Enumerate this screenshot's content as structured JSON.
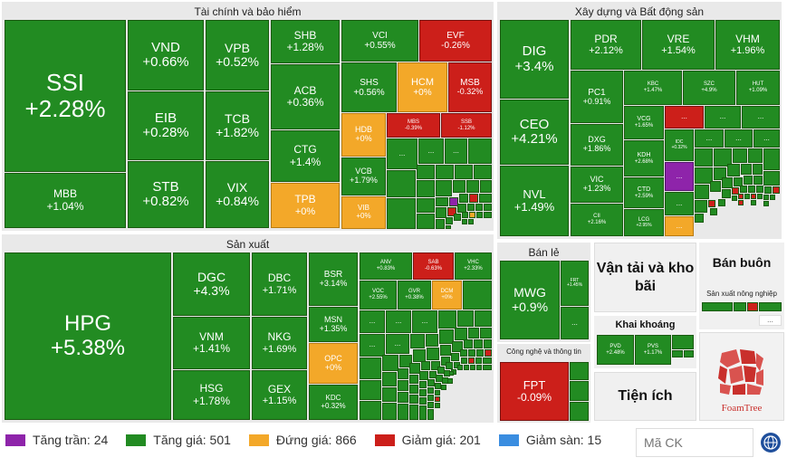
{
  "sectors": {
    "finance": "Tài chính và bảo hiểm",
    "realestate": "Xây dựng và Bất động sản",
    "manufacturing": "Sản xuất",
    "retail": "Bán lẻ",
    "transport": "Vận tải và kho bãi",
    "wholesale": "Bán buôn",
    "agri_wholesale": "Sản xuất nông nghiệp",
    "mining": "Khai khoáng",
    "tech": "Công nghệ và thông tin",
    "utilities": "Tiện ích"
  },
  "tiles": {
    "ssi": {
      "sym": "SSI",
      "chg": "+2.28%"
    },
    "vnd": {
      "sym": "VND",
      "chg": "+0.66%"
    },
    "vpb": {
      "sym": "VPB",
      "chg": "+0.52%"
    },
    "shb": {
      "sym": "SHB",
      "chg": "+1.28%"
    },
    "vci": {
      "sym": "VCI",
      "chg": "+0.55%"
    },
    "evf": {
      "sym": "EVF",
      "chg": "-0.26%"
    },
    "shs": {
      "sym": "SHS",
      "chg": "+0.56%"
    },
    "hcm": {
      "sym": "HCM",
      "chg": "+0%"
    },
    "msb": {
      "sym": "MSB",
      "chg": "-0.32%"
    },
    "eib": {
      "sym": "EIB",
      "chg": "+0.28%"
    },
    "tcb": {
      "sym": "TCB",
      "chg": "+1.82%"
    },
    "acb": {
      "sym": "ACB",
      "chg": "+0.36%"
    },
    "hdb": {
      "sym": "HDB",
      "chg": "+0%"
    },
    "mbs": {
      "sym": "MBS",
      "chg": "-0.39%"
    },
    "ssb": {
      "sym": "SSB",
      "chg": "-1.12%"
    },
    "ctg": {
      "sym": "CTG",
      "chg": "+1.4%"
    },
    "vcb": {
      "sym": "VCB",
      "chg": "+1.79%"
    },
    "mbb": {
      "sym": "MBB",
      "chg": "+1.04%"
    },
    "stb": {
      "sym": "STB",
      "chg": "+0.82%"
    },
    "vix": {
      "sym": "VIX",
      "chg": "+0.84%"
    },
    "tpb": {
      "sym": "TPB",
      "chg": "+0%"
    },
    "vib": {
      "sym": "VIB",
      "chg": "+0%"
    },
    "dig": {
      "sym": "DIG",
      "chg": "+3.4%"
    },
    "pdr": {
      "sym": "PDR",
      "chg": "+2.12%"
    },
    "vre": {
      "sym": "VRE",
      "chg": "+1.54%"
    },
    "vhm": {
      "sym": "VHM",
      "chg": "+1.96%"
    },
    "pc1": {
      "sym": "PC1",
      "chg": "+0.91%"
    },
    "kbc": {
      "sym": "KBC",
      "chg": "+1.47%"
    },
    "szc": {
      "sym": "SZC",
      "chg": "+4.9%"
    },
    "hut": {
      "sym": "HUT",
      "chg": "+1.09%"
    },
    "ceo": {
      "sym": "CEO",
      "chg": "+4.21%"
    },
    "dxg": {
      "sym": "DXG",
      "chg": "+1.86%"
    },
    "vcg": {
      "sym": "VCG",
      "chg": "+1.65%"
    },
    "idc": {
      "sym": "IDC",
      "chg": "+0.32%"
    },
    "kdh": {
      "sym": "KDH",
      "chg": "+2.68%"
    },
    "vic": {
      "sym": "VIC",
      "chg": "+1.23%"
    },
    "ctd": {
      "sym": "CTD",
      "chg": "+2.59%"
    },
    "nvl": {
      "sym": "NVL",
      "chg": "+1.49%"
    },
    "cii": {
      "sym": "CII",
      "chg": "+2.16%"
    },
    "lcg": {
      "sym": "LCG",
      "chg": "+2.95%"
    },
    "hpg": {
      "sym": "HPG",
      "chg": "+5.38%"
    },
    "dgc": {
      "sym": "DGC",
      "chg": "+4.3%"
    },
    "dbc": {
      "sym": "DBC",
      "chg": "+1.71%"
    },
    "bsr": {
      "sym": "BSR",
      "chg": "+3.14%"
    },
    "anv": {
      "sym": "ANV",
      "chg": "+0.83%"
    },
    "sab": {
      "sym": "SAB",
      "chg": "-0.63%"
    },
    "vhc": {
      "sym": "VHC",
      "chg": "+2.33%"
    },
    "voc": {
      "sym": "VOC",
      "chg": "+2.55%"
    },
    "gvr": {
      "sym": "GVR",
      "chg": "+0.38%"
    },
    "dcm": {
      "sym": "DCM",
      "chg": "+0%"
    },
    "vnm": {
      "sym": "VNM",
      "chg": "+1.41%"
    },
    "nkg": {
      "sym": "NKG",
      "chg": "+1.69%"
    },
    "msn": {
      "sym": "MSN",
      "chg": "+1.35%"
    },
    "opc": {
      "sym": "OPC",
      "chg": "+0%"
    },
    "hsg": {
      "sym": "HSG",
      "chg": "+1.78%"
    },
    "gex": {
      "sym": "GEX",
      "chg": "+1.15%"
    },
    "kdc": {
      "sym": "KDC",
      "chg": "+0.32%"
    },
    "mwg": {
      "sym": "MWG",
      "chg": "+0.9%"
    },
    "frt": {
      "sym": "FRT",
      "chg": "+1.45%"
    },
    "fpt": {
      "sym": "FPT",
      "chg": "-0.09%"
    },
    "pvd": {
      "sym": "PVD",
      "chg": "+2.48%"
    },
    "pvs": {
      "sym": "PVS",
      "chg": "+1.17%"
    }
  },
  "more": "...",
  "legend": {
    "ceiling": "Tăng trần: 24",
    "up": "Tăng giá: 501",
    "ref": "Đứng giá: 866",
    "down": "Giảm giá: 201",
    "floor": "Giảm sàn: 15"
  },
  "colors": {
    "ceiling": "#8e24aa",
    "up": "#228b22",
    "ref": "#f3a829",
    "down": "#cc1f1a",
    "floor": "#3a8de0"
  },
  "search": {
    "placeholder": "Mã CK"
  },
  "brand": "FoamTree",
  "icons": {
    "globe": "globe-icon",
    "logo": "foamtree-logo"
  }
}
